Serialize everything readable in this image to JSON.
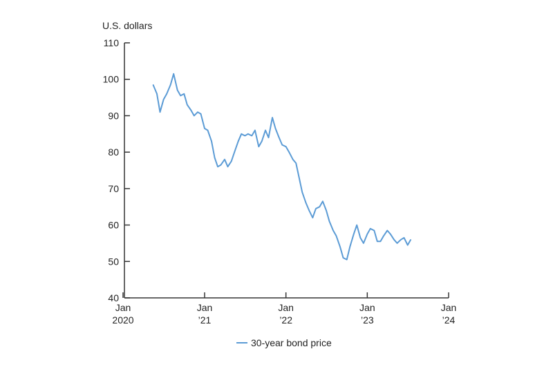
{
  "chart_data": {
    "type": "line",
    "title": "",
    "ylabel": "U.S. dollars",
    "xlabel": "",
    "ylim": [
      40,
      110
    ],
    "yticks": [
      40,
      50,
      60,
      70,
      80,
      90,
      100,
      110
    ],
    "xlim": [
      "2020-01-01",
      "2024-01-01"
    ],
    "xticks": [
      {
        "date": "2020-01-01",
        "line1": "Jan",
        "line2": "2020"
      },
      {
        "date": "2021-01-01",
        "line1": "Jan",
        "line2": "’21"
      },
      {
        "date": "2022-01-01",
        "line1": "Jan",
        "line2": "’22"
      },
      {
        "date": "2023-01-01",
        "line1": "Jan",
        "line2": "’23"
      },
      {
        "date": "2024-01-01",
        "line1": "Jan",
        "line2": "’24"
      }
    ],
    "grid": false,
    "legend_placement": "bottom-center",
    "series": [
      {
        "name": "30-year bond price",
        "color": "#5b9bd5",
        "points": [
          [
            "2020-05-15",
            98.5
          ],
          [
            "2020-06-01",
            96
          ],
          [
            "2020-06-15",
            91
          ],
          [
            "2020-07-01",
            94.5
          ],
          [
            "2020-07-15",
            96
          ],
          [
            "2020-08-01",
            98.5
          ],
          [
            "2020-08-15",
            101.5
          ],
          [
            "2020-09-01",
            97
          ],
          [
            "2020-09-15",
            95.5
          ],
          [
            "2020-10-01",
            96
          ],
          [
            "2020-10-15",
            93
          ],
          [
            "2020-11-01",
            91.5
          ],
          [
            "2020-11-15",
            90
          ],
          [
            "2020-12-01",
            91
          ],
          [
            "2020-12-15",
            90.5
          ],
          [
            "2021-01-01",
            86.5
          ],
          [
            "2021-01-15",
            86
          ],
          [
            "2021-02-01",
            83
          ],
          [
            "2021-02-15",
            78.5
          ],
          [
            "2021-03-01",
            76
          ],
          [
            "2021-03-15",
            76.5
          ],
          [
            "2021-04-01",
            78
          ],
          [
            "2021-04-15",
            76
          ],
          [
            "2021-05-01",
            77.5
          ],
          [
            "2021-05-15",
            80
          ],
          [
            "2021-06-01",
            83
          ],
          [
            "2021-06-15",
            85
          ],
          [
            "2021-07-01",
            84.5
          ],
          [
            "2021-07-15",
            85
          ],
          [
            "2021-08-01",
            84.5
          ],
          [
            "2021-08-15",
            86
          ],
          [
            "2021-09-01",
            81.5
          ],
          [
            "2021-09-15",
            83
          ],
          [
            "2021-10-01",
            86
          ],
          [
            "2021-10-15",
            84
          ],
          [
            "2021-11-01",
            89.5
          ],
          [
            "2021-11-15",
            86.5
          ],
          [
            "2021-12-01",
            84
          ],
          [
            "2021-12-15",
            82
          ],
          [
            "2022-01-01",
            81.5
          ],
          [
            "2022-01-15",
            80
          ],
          [
            "2022-02-01",
            78
          ],
          [
            "2022-02-15",
            77
          ],
          [
            "2022-03-01",
            73
          ],
          [
            "2022-03-15",
            69
          ],
          [
            "2022-04-01",
            66
          ],
          [
            "2022-04-15",
            64
          ],
          [
            "2022-05-01",
            62
          ],
          [
            "2022-05-15",
            64.5
          ],
          [
            "2022-06-01",
            65
          ],
          [
            "2022-06-15",
            66.5
          ],
          [
            "2022-07-01",
            64
          ],
          [
            "2022-07-15",
            61
          ],
          [
            "2022-08-01",
            58.5
          ],
          [
            "2022-08-15",
            57
          ],
          [
            "2022-09-01",
            54
          ],
          [
            "2022-09-15",
            51
          ],
          [
            "2022-10-01",
            50.5
          ],
          [
            "2022-10-15",
            54
          ],
          [
            "2022-11-01",
            57.5
          ],
          [
            "2022-11-15",
            60
          ],
          [
            "2022-12-01",
            56.5
          ],
          [
            "2022-12-15",
            55
          ],
          [
            "2023-01-01",
            57.5
          ],
          [
            "2023-01-15",
            59
          ],
          [
            "2023-02-01",
            58.5
          ],
          [
            "2023-02-15",
            55.5
          ],
          [
            "2023-03-01",
            55.5
          ],
          [
            "2023-03-15",
            57
          ],
          [
            "2023-04-01",
            58.5
          ],
          [
            "2023-04-15",
            57.5
          ],
          [
            "2023-05-01",
            56
          ],
          [
            "2023-05-15",
            55
          ],
          [
            "2023-06-01",
            56
          ],
          [
            "2023-06-15",
            56.5
          ],
          [
            "2023-07-01",
            54.5
          ],
          [
            "2023-07-15",
            56
          ]
        ]
      }
    ]
  }
}
